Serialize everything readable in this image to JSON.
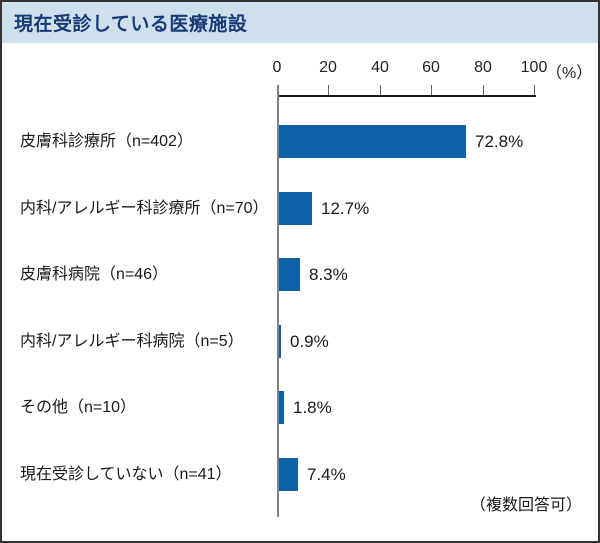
{
  "header": {
    "title": "現在受診している医療施設"
  },
  "note": "（複数回答可）",
  "colors": {
    "bar": "#0e61a9",
    "title_bar_bg": "#cfe0ed",
    "title_text": "#183a77",
    "axis_line": "#1a1a1a",
    "baseline": "#808080"
  },
  "chart_data": {
    "type": "bar",
    "orientation": "horizontal",
    "title": "現在受診している医療施設",
    "categories": [
      "皮膚科診療所（n=402）",
      "内科/アレルギー科診療所（n=70）",
      "皮膚科病院（n=46）",
      "内科/アレルギー科病院（n=5）",
      "その他（n=10）",
      "現在受診していない（n=41）"
    ],
    "values": [
      72.8,
      12.7,
      8.3,
      0.9,
      1.8,
      7.4
    ],
    "value_labels": [
      "72.8%",
      "12.7%",
      "8.3%",
      "0.9%",
      "1.8%",
      "7.4%"
    ],
    "xlim": [
      0,
      100
    ],
    "x_ticks": [
      0,
      20,
      40,
      60,
      80,
      100
    ],
    "unit_label": "（%）",
    "grid": false,
    "legend": "none",
    "annotation": "（複数回答可）"
  }
}
